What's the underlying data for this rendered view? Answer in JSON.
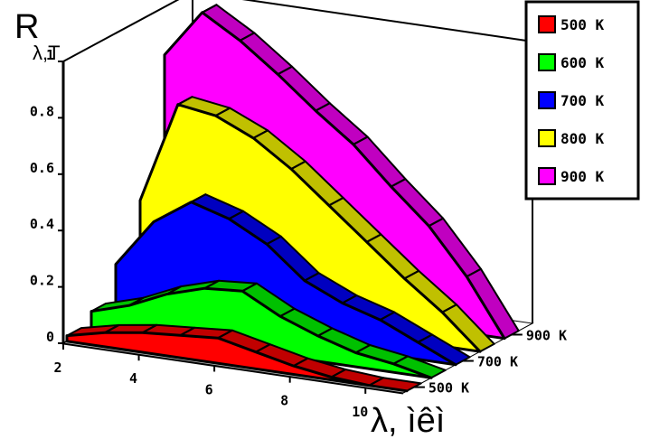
{
  "chart_data": {
    "type": "area",
    "subtype": "3d-ribbon",
    "ylabel_main": "R",
    "ylabel_sub": "λ,T",
    "xlabel": "λ, ìêì",
    "x": [
      2,
      3,
      4,
      5,
      6,
      7,
      8,
      9,
      10,
      11
    ],
    "x_ticks": [
      "2",
      "4",
      "6",
      "8",
      "10"
    ],
    "y_ticks": [
      "0",
      "0.2",
      "0.4",
      "0.6",
      "0.8",
      "1"
    ],
    "ylim": [
      0,
      1
    ],
    "z_ticks": [
      "500 K",
      "700 K",
      "900 K"
    ],
    "legend_position": "top-right",
    "series": [
      {
        "name": "500 K",
        "color": "#ff0000",
        "side_color": "#c00000",
        "values": [
          0.02,
          0.05,
          0.07,
          0.08,
          0.09,
          0.06,
          0.03,
          0.01,
          0.0,
          0.0
        ]
      },
      {
        "name": "600 K",
        "color": "#00ff00",
        "side_color": "#00c000",
        "values": [
          0.06,
          0.1,
          0.16,
          0.2,
          0.21,
          0.14,
          0.09,
          0.05,
          0.03,
          0.0
        ]
      },
      {
        "name": "700 K",
        "color": "#0000ff",
        "side_color": "#0000c0",
        "values": [
          0.18,
          0.35,
          0.44,
          0.4,
          0.33,
          0.22,
          0.16,
          0.12,
          0.06,
          0.0
        ]
      },
      {
        "name": "800 K",
        "color": "#ffff00",
        "side_color": "#c0c000",
        "values": [
          0.36,
          0.72,
          0.7,
          0.64,
          0.55,
          0.44,
          0.33,
          0.22,
          0.12,
          0.0
        ]
      },
      {
        "name": "900 K",
        "color": "#ff00ff",
        "side_color": "#c000c0",
        "values": [
          0.83,
          1.0,
          0.92,
          0.82,
          0.71,
          0.61,
          0.48,
          0.36,
          0.2,
          0.0
        ]
      }
    ]
  }
}
